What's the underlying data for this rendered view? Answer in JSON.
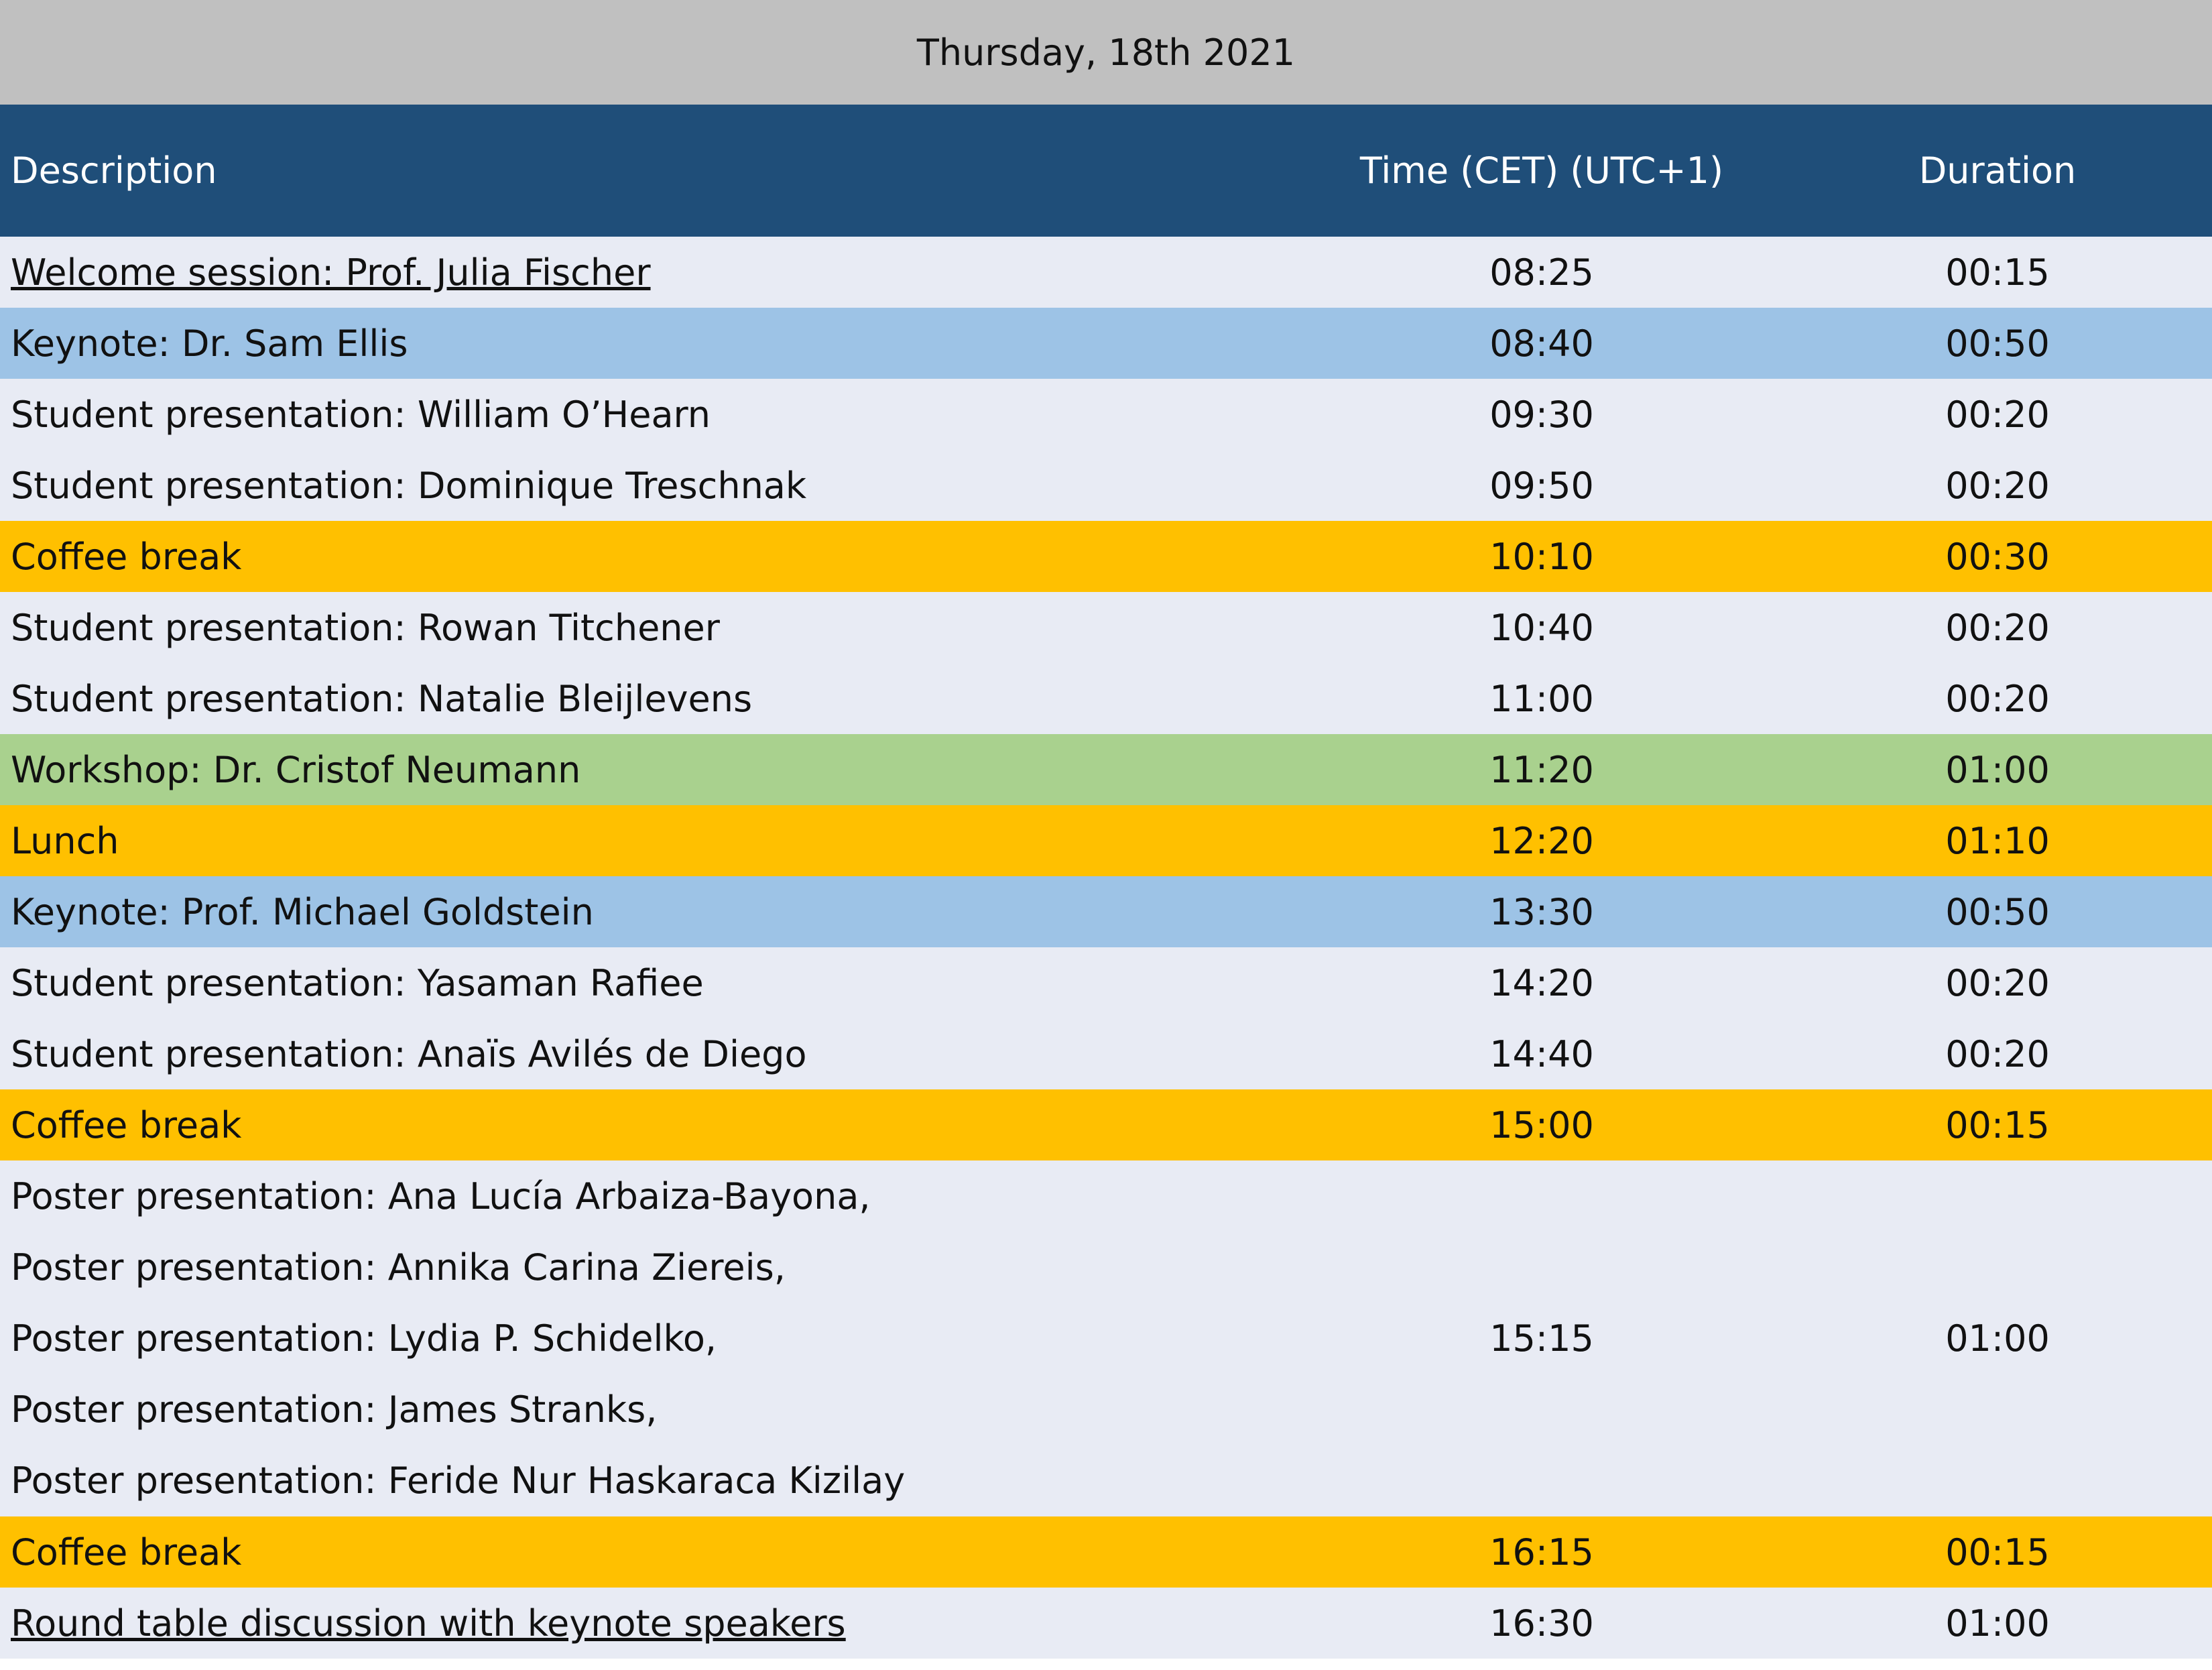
{
  "date_title": "Thursday, 18th 2021",
  "columns": {
    "description": "Description",
    "time": "Time (CET) (UTC+1)",
    "duration": "Duration"
  },
  "colors": {
    "date_bar": "#c0c0c0",
    "header": "#1f4e79",
    "default_row": "#e8ebf4",
    "keynote_row": "#9dc3e6",
    "break_row": "#ffc000",
    "workshop_row": "#a9d18e"
  },
  "rows": [
    {
      "description": "Welcome session: Prof. Julia Fischer",
      "time": "08:25",
      "duration": "00:15"
    },
    {
      "description": "Keynote: Dr. Sam Ellis",
      "time": "08:40",
      "duration": "00:50"
    },
    {
      "description": "Student presentation: William O’Hearn",
      "time": "09:30",
      "duration": "00:20"
    },
    {
      "description": "Student presentation: Dominique Treschnak",
      "time": "09:50",
      "duration": "00:20"
    },
    {
      "description": "Coffee break",
      "time": "10:10",
      "duration": "00:30"
    },
    {
      "description": "Student presentation: Rowan Titchener",
      "time": "10:40",
      "duration": "00:20"
    },
    {
      "description": "Student presentation: Natalie Bleijlevens",
      "time": "11:00",
      "duration": "00:20"
    },
    {
      "description": "Workshop: Dr. Cristof Neumann",
      "time": "11:20",
      "duration": "01:00"
    },
    {
      "description": "Lunch",
      "time": "12:20",
      "duration": "01:10"
    },
    {
      "description": "Keynote: Prof. Michael Goldstein",
      "time": "13:30",
      "duration": "00:50"
    },
    {
      "description": "Student presentation: Yasaman Rafiee",
      "time": "14:20",
      "duration": "00:20"
    },
    {
      "description": "Student presentation: Anaïs Avilés de Diego",
      "time": "14:40",
      "duration": "00:20"
    },
    {
      "description": "Coffee break",
      "time": "15:00",
      "duration": "00:15"
    },
    {
      "descriptions": [
        "Poster presentation: Ana Lucía Arbaiza-Bayona,",
        "Poster presentation: Annika Carina Ziereis,",
        "Poster presentation: Lydia P. Schidelko,",
        "Poster presentation: James Stranks,",
        "Poster presentation: Feride Nur Haskaraca Kizilay"
      ],
      "time": "15:15",
      "duration": "01:00"
    },
    {
      "description": "Coffee break",
      "time": "16:15",
      "duration": "00:15"
    },
    {
      "description": "Round table discussion with keynote speakers",
      "time": "16:30",
      "duration": "01:00"
    }
  ]
}
